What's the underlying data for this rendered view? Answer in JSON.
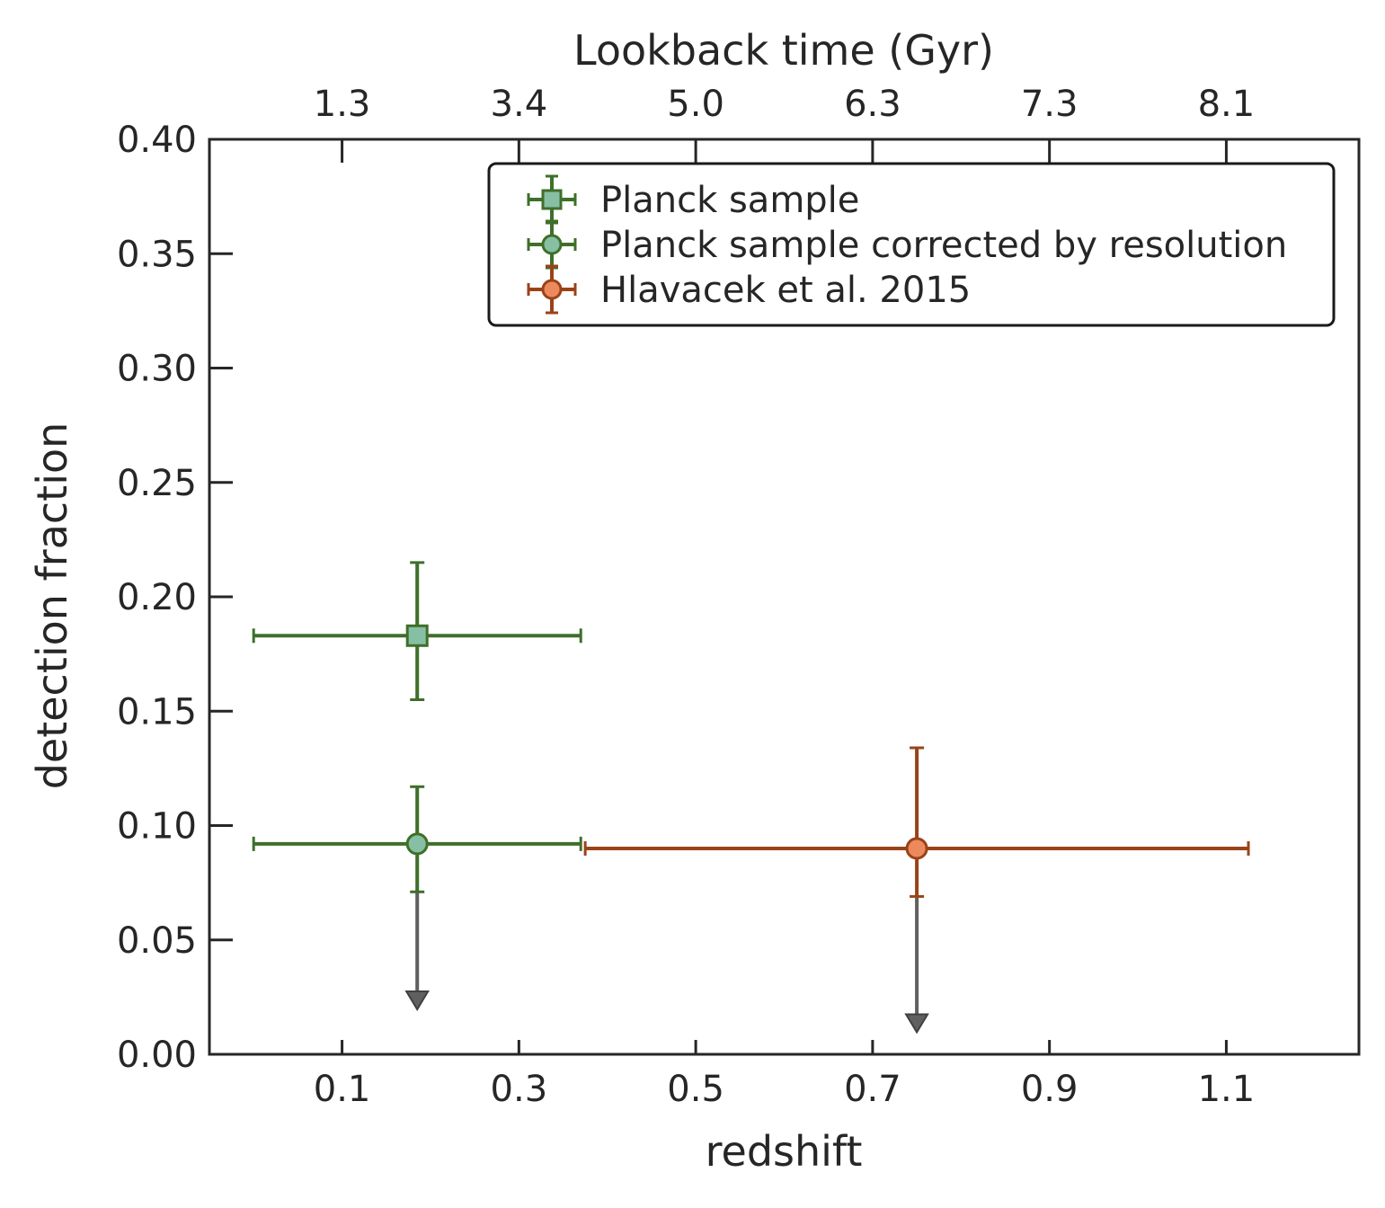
{
  "chart_data": {
    "type": "scatter",
    "xlabel": "redshift",
    "ylabel": "detection fraction",
    "top_xlabel": "Lookback time (Gyr)",
    "xlim": [
      -0.05,
      1.25
    ],
    "ylim": [
      0.0,
      0.4
    ],
    "x_ticks": [
      0.1,
      0.3,
      0.5,
      0.7,
      0.9,
      1.1
    ],
    "x_tick_labels": [
      "0.1",
      "0.3",
      "0.5",
      "0.7",
      "0.9",
      "1.1"
    ],
    "y_ticks": [
      0.0,
      0.05,
      0.1,
      0.15,
      0.2,
      0.25,
      0.3,
      0.35,
      0.4
    ],
    "y_tick_labels": [
      "0.00",
      "0.05",
      "0.10",
      "0.15",
      "0.20",
      "0.25",
      "0.30",
      "0.35",
      "0.40"
    ],
    "top_x_ticks": [
      0.1,
      0.3,
      0.5,
      0.7,
      0.9,
      1.1
    ],
    "top_x_tick_labels": [
      "1.3",
      "3.4",
      "5.0",
      "6.3",
      "7.3",
      "8.1"
    ],
    "grid": false,
    "legend_position": "top-right",
    "series": [
      {
        "name": "Planck sample",
        "marker": "square",
        "color": "#3f6f2a",
        "fill": "#86bfa3",
        "points": [
          {
            "x": 0.185,
            "y": 0.183,
            "xerr": [
              0.185,
              0.185
            ],
            "yerr": [
              0.028,
              0.032
            ]
          }
        ],
        "upper_limit_arrows": []
      },
      {
        "name": "Planck sample corrected by resolution",
        "marker": "circle",
        "color": "#3f6f2a",
        "fill": "#86bfa3",
        "points": [
          {
            "x": 0.185,
            "y": 0.092,
            "xerr": [
              0.185,
              0.185
            ],
            "yerr": [
              0.021,
              0.025
            ]
          }
        ],
        "upper_limit_arrows": [
          {
            "x": 0.185,
            "from": 0.071,
            "to": 0.022
          }
        ]
      },
      {
        "name": "Hlavacek et al.  2015",
        "marker": "circle",
        "color": "#9a4318",
        "fill": "#ec8a5e",
        "points": [
          {
            "x": 0.75,
            "y": 0.09,
            "xerr": [
              0.375,
              0.375
            ],
            "yerr": [
              0.021,
              0.044
            ]
          }
        ],
        "upper_limit_arrows": [
          {
            "x": 0.75,
            "from": 0.069,
            "to": 0.012
          }
        ]
      }
    ],
    "arrow_color": "#606060"
  }
}
